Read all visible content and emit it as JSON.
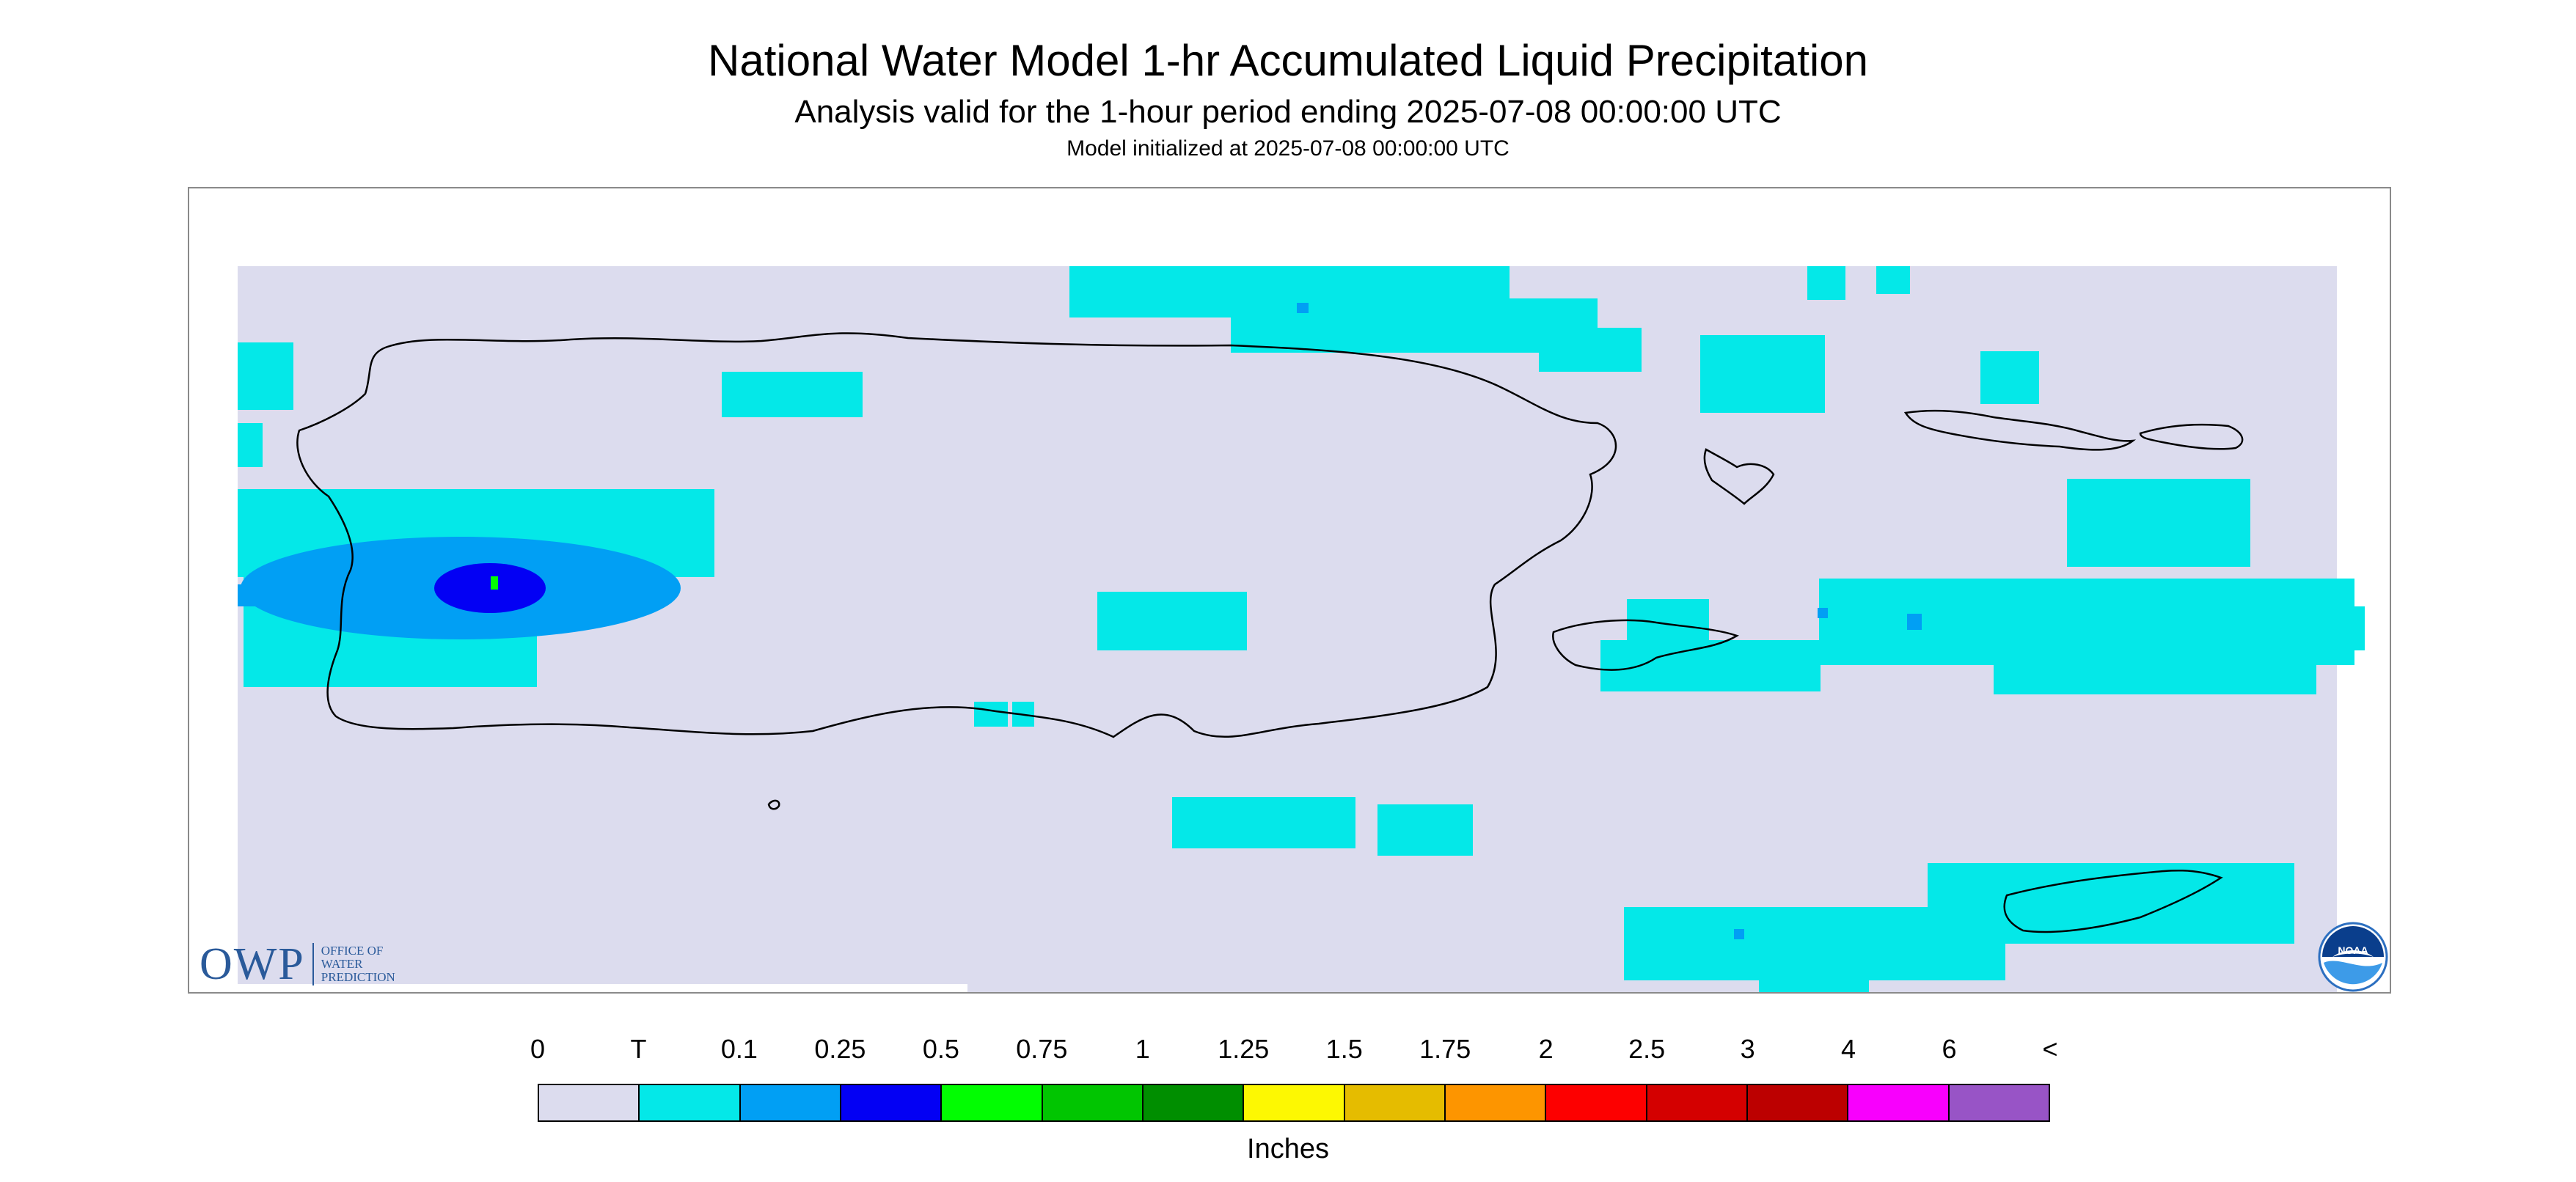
{
  "header": {
    "title": "National Water Model 1-hr Accumulated Liquid Precipitation",
    "subtitle": "Analysis valid for the 1-hour period ending 2025-07-08 00:00:00 UTC",
    "init_line": "Model initialized at 2025-07-08 00:00:00 UTC"
  },
  "logos": {
    "owp_letters": "OWP",
    "owp_line1": "Office of",
    "owp_line2": "Water",
    "owp_line3": "Prediction",
    "noaa_text": "NOAA"
  },
  "legend": {
    "units": "Inches",
    "labels": [
      "0",
      "T",
      "0.1",
      "0.25",
      "0.5",
      "0.75",
      "1",
      "1.25",
      "1.5",
      "1.75",
      "2",
      "2.5",
      "3",
      "4",
      "6",
      "<"
    ],
    "colors": [
      "#dcdcee",
      "#04e8e8",
      "#019ff4",
      "#0300f4",
      "#02fd02",
      "#01c501",
      "#008e00",
      "#fdf802",
      "#e5bc00",
      "#fd9500",
      "#fd0000",
      "#d40000",
      "#bc0000",
      "#f800fd",
      "#9854c6"
    ]
  },
  "map": {
    "background_color": "#dcdcee",
    "frame_color": "#8a8a8a",
    "coastline_color": "#000000"
  }
}
